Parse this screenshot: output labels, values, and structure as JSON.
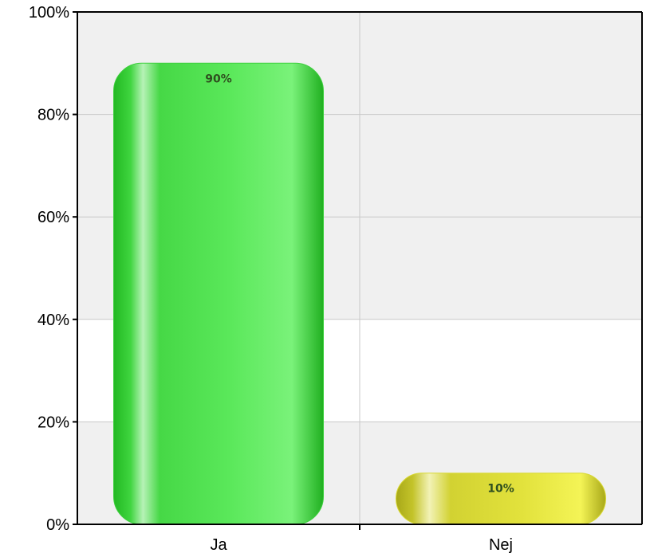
{
  "chart_data": {
    "type": "bar",
    "categories": [
      "Ja",
      "Nej"
    ],
    "values": [
      90,
      10
    ],
    "data_labels": [
      "90%",
      "10%"
    ],
    "ylim": [
      0,
      100
    ],
    "yticks": [
      0,
      20,
      40,
      60,
      80,
      100
    ],
    "ytick_labels": [
      "0%",
      "20%",
      "40%",
      "60%",
      "80%",
      "100%"
    ],
    "title": "",
    "xlabel": "",
    "ylabel": "",
    "grid": true,
    "legend": "none",
    "colors": {
      "bars": [
        "#3ccf3c",
        "#d8d830"
      ],
      "plot_background": "#f0f0f0",
      "gridline": "#c8c8c8",
      "axis": "#000000"
    }
  }
}
